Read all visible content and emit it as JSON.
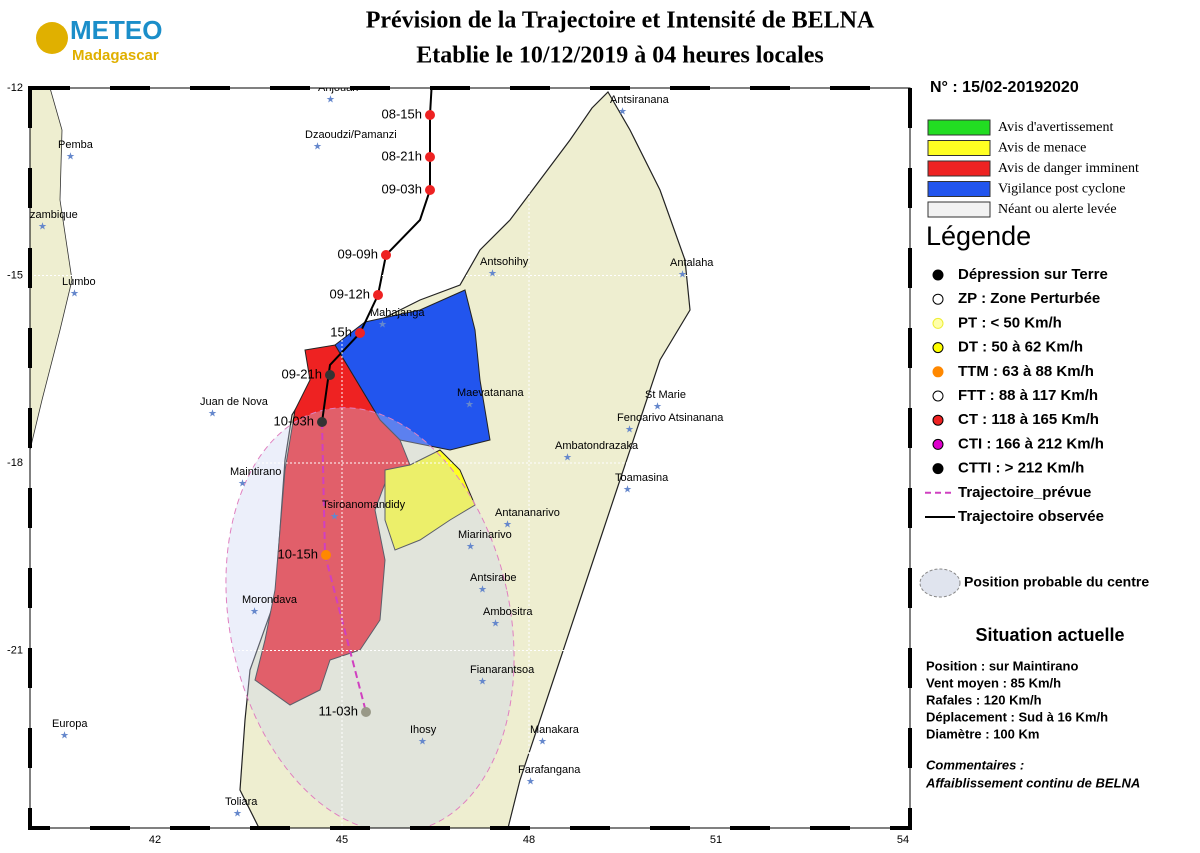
{
  "header": {
    "logo_title": "METEO",
    "logo_subtitle": "Madagascar",
    "title": "Prévision de la Trajectoire et Intensité de BELNA",
    "subtitle": "Etablie le 10/12/2019 à 04 heures locales"
  },
  "bulletin_number": "N° : 15/02-20192020",
  "alerts": [
    {
      "label": "Avis d'avertissement",
      "color": "#22dd22"
    },
    {
      "label": "Avis de menace",
      "color": "#ffff22"
    },
    {
      "label": "Avis de danger imminent",
      "color": "#ee2222"
    },
    {
      "label": "Vigilance post cyclone",
      "color": "#2255ee"
    },
    {
      "label": "Néant ou alerte levée",
      "color": "#f2f2f2"
    }
  ],
  "legend": {
    "title": "Légende",
    "items": [
      "Dépression sur Terre",
      "ZP : Zone Perturbée",
      "PT : < 50 Km/h",
      "DT : 50 à 62 Km/h",
      "TTM : 63 à 88 Km/h",
      "FTT : 88 à 117 Km/h",
      "CT : 118 à 165 Km/h",
      "CTI : 166 à 212 Km/h",
      "CTTI : > 212 Km/h",
      "Trajectoire_prévue",
      "Trajectoire observée",
      "Position probable du centre"
    ]
  },
  "situation": {
    "title": "Situation actuelle",
    "lines": [
      "Position : sur Maintirano",
      "Vent moyen : 85 Km/h",
      "Rafales : 120 Km/h",
      "Déplacement : Sud à 16 Km/h",
      "Diamètre : 100 Km"
    ],
    "comment_title": "Commentaires :",
    "comment": "Affaiblissement continu de BELNA"
  },
  "map": {
    "lat_ticks": [
      -12,
      -15,
      -18,
      -21
    ],
    "lon_ticks": [
      42,
      45,
      48,
      51,
      54
    ],
    "places": [
      "Anjouan",
      "Dzaoudzi/Pamanzi",
      "Pemba",
      "zambique",
      "Lumbo",
      "Juan de Nova",
      "Maintirano",
      "Tsiroanomandidy",
      "Morondava",
      "Europa",
      "Toliara",
      "Ihosy",
      "Farafangana",
      "Manakara",
      "Fianarantsoa",
      "Ambositra",
      "Antsirabe",
      "Miarinarivo",
      "Antananarivo",
      "Toamasina",
      "Ambatondrazaka",
      "Fenoarivo Atsinanana",
      "St Marie",
      "Maevatanana",
      "Mahajanga",
      "Antsohihy",
      "Antalaha",
      "Antsiranana"
    ],
    "track_labels": [
      "08-15h",
      "08-21h",
      "09-03h",
      "09-09h",
      "09-12h",
      "15h",
      "09-21h",
      "10-03h",
      "10-15h",
      "11-03h"
    ]
  }
}
